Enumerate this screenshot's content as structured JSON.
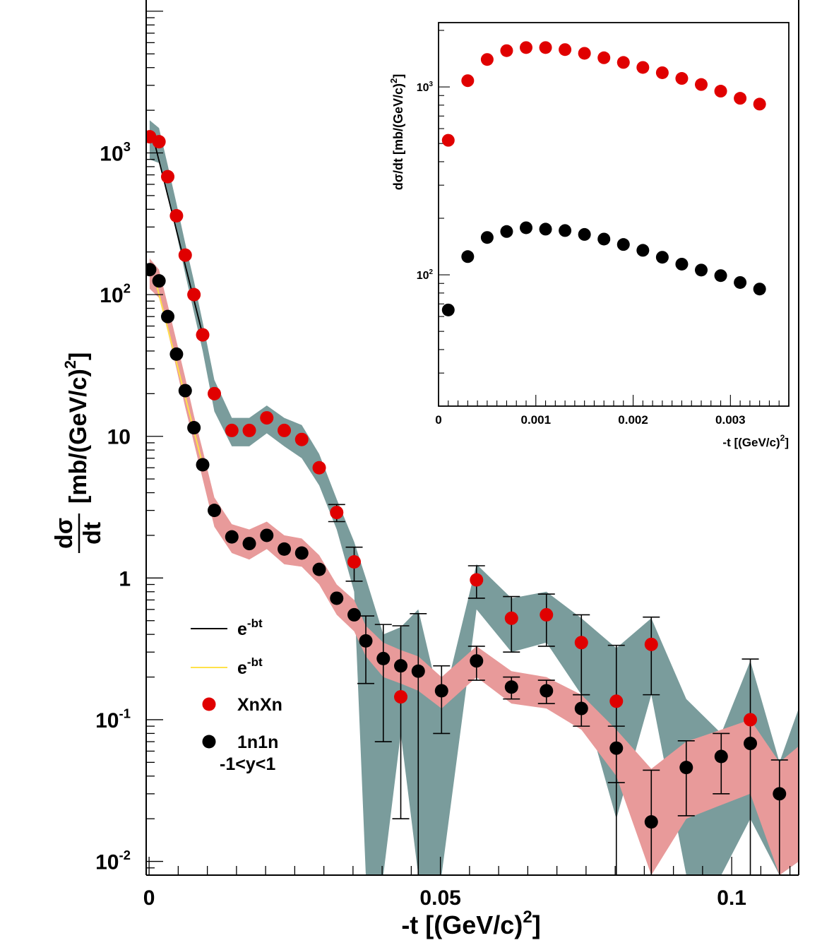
{
  "chart_data": [
    {
      "type": "scatter",
      "panel": "main",
      "xlabel_main": "-t [(GeV/c)",
      "xlabel_sup": "2",
      "xlabel_end": "]",
      "ylabel_frac_num": "dσ",
      "ylabel_frac_den": "dt",
      "ylabel_rest": "[mb/(GeV/c)",
      "ylabel_sup": "2",
      "ylabel_end": "]",
      "xlim": [
        -0.0005,
        0.1115
      ],
      "ylim": [
        0.008,
        12000
      ],
      "yscale": "log",
      "x_ticks": [
        {
          "value": 0,
          "label": "0"
        },
        {
          "value": 0.05,
          "label": "0.05"
        },
        {
          "value": 0.1,
          "label": "0.1"
        }
      ],
      "y_ticks": [
        {
          "value": 0.01,
          "base": "10",
          "exp": "-2"
        },
        {
          "value": 0.1,
          "base": "10",
          "exp": "-1"
        },
        {
          "value": 1,
          "base": "1",
          "exp": ""
        },
        {
          "value": 10,
          "base": "10",
          "exp": ""
        },
        {
          "value": 100,
          "base": "10",
          "exp": "2"
        },
        {
          "value": 1000,
          "base": "10",
          "exp": "3"
        }
      ],
      "legend": {
        "position": "bottom-left",
        "entries": [
          {
            "kind": "line",
            "color": "#000000",
            "label": "e",
            "sup": "-bt"
          },
          {
            "kind": "line",
            "color": "#ffe24a",
            "label": "e",
            "sup": "-bt"
          },
          {
            "kind": "marker",
            "color": "#e00000",
            "label": "XnXn",
            "sup": ""
          },
          {
            "kind": "marker",
            "color": "#000000",
            "label": "1n1n",
            "sup": ""
          }
        ],
        "note": "-1<y<1"
      },
      "series": [
        {
          "label": "XnXn",
          "marker_color": "#e00000",
          "band_color": "#7a9c9c",
          "points": [
            [
              0.0001,
              1300,
              null
            ],
            [
              0.0017,
              1200,
              null
            ],
            [
              0.0032,
              680,
              null
            ],
            [
              0.0047,
              360,
              null
            ],
            [
              0.0062,
              190,
              null
            ],
            [
              0.0077,
              100,
              null
            ],
            [
              0.0092,
              52,
              null
            ],
            [
              0.0112,
              20,
              null
            ],
            [
              0.0142,
              11,
              null
            ],
            [
              0.0172,
              11,
              null
            ],
            [
              0.0202,
              13.5,
              null
            ],
            [
              0.0232,
              11,
              null
            ],
            [
              0.0262,
              9.5,
              null
            ],
            [
              0.0292,
              6,
              null
            ],
            [
              0.0322,
              2.9,
              0.4
            ],
            [
              0.0352,
              1.3,
              0.35
            ],
            [
              0.0432,
              0.145,
              null
            ],
            [
              0.0562,
              0.97,
              0.25
            ],
            [
              0.0622,
              0.52,
              0.22
            ],
            [
              0.0682,
              0.55,
              0.22
            ],
            [
              0.0742,
              0.35,
              0.2
            ],
            [
              0.0802,
              0.135,
              0.2
            ],
            [
              0.0862,
              0.34,
              0.19
            ],
            [
              0.1032,
              0.1,
              null
            ]
          ],
          "band": [
            [
              0.0001,
              900,
              1700
            ],
            [
              0.0017,
              850,
              1500
            ],
            [
              0.0032,
              500,
              820
            ],
            [
              0.0047,
              270,
              440
            ],
            [
              0.0062,
              140,
              230
            ],
            [
              0.0077,
              75,
              125
            ],
            [
              0.0092,
              40,
              64
            ],
            [
              0.0112,
              15,
              25
            ],
            [
              0.0142,
              8.5,
              13.5
            ],
            [
              0.0172,
              8.5,
              13.5
            ],
            [
              0.0202,
              10.5,
              16.5
            ],
            [
              0.0232,
              8.5,
              13.5
            ],
            [
              0.0262,
              7,
              12
            ],
            [
              0.0292,
              4.5,
              7.5
            ],
            [
              0.0322,
              2.2,
              3.6
            ],
            [
              0.0352,
              0.8,
              1.8
            ],
            [
              0.0372,
              0.008,
              1.0
            ],
            [
              0.0402,
              0.008,
              0.4
            ],
            [
              0.0432,
              0.08,
              0.45
            ],
            [
              0.0462,
              0.008,
              0.6
            ],
            [
              0.0502,
              0.008,
              0.12
            ],
            [
              0.0562,
              0.6,
              1.25
            ],
            [
              0.0622,
              0.3,
              0.72
            ],
            [
              0.0682,
              0.35,
              0.8
            ],
            [
              0.0742,
              0.15,
              0.52
            ],
            [
              0.0802,
              0.02,
              0.32
            ],
            [
              0.0862,
              0.15,
              0.52
            ],
            [
              0.0922,
              0.008,
              0.14
            ],
            [
              0.0982,
              0.008,
              0.08
            ],
            [
              0.1032,
              0.02,
              0.26
            ],
            [
              0.1082,
              0.008,
              0.05
            ],
            [
              0.1115,
              0.01,
              0.12
            ]
          ]
        },
        {
          "label": "1n1n",
          "marker_color": "#000000",
          "band_color": "#e89a9a",
          "points": [
            [
              0.0001,
              150,
              null
            ],
            [
              0.0017,
              125,
              null
            ],
            [
              0.0032,
              70,
              null
            ],
            [
              0.0047,
              38,
              null
            ],
            [
              0.0062,
              21,
              null
            ],
            [
              0.0077,
              11.5,
              null
            ],
            [
              0.0092,
              6.3,
              null
            ],
            [
              0.0112,
              3.0,
              null
            ],
            [
              0.0142,
              1.95,
              null
            ],
            [
              0.0172,
              1.75,
              null
            ],
            [
              0.0202,
              2.0,
              null
            ],
            [
              0.0232,
              1.6,
              null
            ],
            [
              0.0262,
              1.5,
              null
            ],
            [
              0.0292,
              1.15,
              null
            ],
            [
              0.0322,
              0.72,
              null
            ],
            [
              0.0352,
              0.55,
              null
            ],
            [
              0.0372,
              0.36,
              0.18
            ],
            [
              0.0402,
              0.27,
              0.2
            ],
            [
              0.0432,
              0.24,
              0.22
            ],
            [
              0.0462,
              0.22,
              0.34
            ],
            [
              0.0502,
              0.16,
              0.08
            ],
            [
              0.0562,
              0.26,
              0.07
            ],
            [
              0.0622,
              0.17,
              0.03
            ],
            [
              0.0682,
              0.16,
              0.03
            ],
            [
              0.0742,
              0.12,
              0.03
            ],
            [
              0.0802,
              0.063,
              0.027
            ],
            [
              0.0862,
              0.019,
              0.025
            ],
            [
              0.0922,
              0.046,
              0.025
            ],
            [
              0.0982,
              0.055,
              0.025
            ],
            [
              0.1032,
              0.068,
              0.2
            ],
            [
              0.1082,
              0.03,
              0.022
            ]
          ],
          "band": [
            [
              0.0001,
              110,
              180
            ],
            [
              0.0017,
              95,
              150
            ],
            [
              0.0032,
              55,
              85
            ],
            [
              0.0047,
              30,
              47
            ],
            [
              0.0062,
              16,
              26
            ],
            [
              0.0077,
              9,
              14
            ],
            [
              0.0092,
              5,
              8
            ],
            [
              0.0112,
              2.3,
              3.7
            ],
            [
              0.0142,
              1.5,
              2.4
            ],
            [
              0.0172,
              1.35,
              2.2
            ],
            [
              0.0202,
              1.6,
              2.5
            ],
            [
              0.0232,
              1.25,
              2.0
            ],
            [
              0.0262,
              1.2,
              1.9
            ],
            [
              0.0292,
              0.9,
              1.45
            ],
            [
              0.0322,
              0.55,
              0.9
            ],
            [
              0.0352,
              0.42,
              0.7
            ],
            [
              0.0372,
              0.28,
              0.46
            ],
            [
              0.0402,
              0.2,
              0.35
            ],
            [
              0.0432,
              0.18,
              0.31
            ],
            [
              0.0462,
              0.16,
              0.28
            ],
            [
              0.0502,
              0.12,
              0.2
            ],
            [
              0.0562,
              0.2,
              0.33
            ],
            [
              0.0622,
              0.13,
              0.22
            ],
            [
              0.0682,
              0.12,
              0.2
            ],
            [
              0.0742,
              0.085,
              0.15
            ],
            [
              0.0802,
              0.04,
              0.085
            ],
            [
              0.0862,
              0.008,
              0.045
            ],
            [
              0.0922,
              0.02,
              0.07
            ],
            [
              0.0982,
              0.025,
              0.085
            ],
            [
              0.1032,
              0.03,
              0.1
            ],
            [
              0.1082,
              0.008,
              0.05
            ],
            [
              0.1115,
              0.01,
              0.065
            ]
          ]
        }
      ],
      "fits": [
        {
          "label": "e^-bt",
          "color": "#000000",
          "x0": 0.001,
          "x1": 0.0092,
          "y0": 1150,
          "y1": 52
        },
        {
          "label": "e^-bt",
          "color": "#ffe24a",
          "x0": 0.001,
          "x1": 0.0092,
          "y0": 130,
          "y1": 6.3
        }
      ]
    },
    {
      "type": "scatter",
      "panel": "inset",
      "xlabel_main": "-t [(GeV/c)",
      "xlabel_sup": "2",
      "xlabel_end": "]",
      "ylabel_main": "dσ/dt [mb/(GeV/c)",
      "ylabel_sup": "2",
      "ylabel_end": "]",
      "xlim": [
        0,
        0.0036
      ],
      "ylim": [
        20,
        2200
      ],
      "yscale": "log",
      "x_ticks": [
        {
          "value": 0,
          "label": "0"
        },
        {
          "value": 0.001,
          "label": "0.001"
        },
        {
          "value": 0.002,
          "label": "0.002"
        },
        {
          "value": 0.003,
          "label": "0.003"
        }
      ],
      "y_ticks": [
        {
          "value": 100,
          "base": "10",
          "exp": "2"
        },
        {
          "value": 1000,
          "base": "10",
          "exp": "3"
        }
      ],
      "series": [
        {
          "label": "XnXn",
          "color": "#e00000",
          "x": [
            0.0001,
            0.0003,
            0.0005,
            0.0007,
            0.0009,
            0.0011,
            0.0013,
            0.0015,
            0.0017,
            0.0019,
            0.0021,
            0.0023,
            0.0025,
            0.0027,
            0.0029,
            0.0031,
            0.0033
          ],
          "y": [
            520,
            1080,
            1400,
            1560,
            1620,
            1620,
            1580,
            1510,
            1430,
            1350,
            1270,
            1190,
            1110,
            1030,
            950,
            870,
            810
          ]
        },
        {
          "label": "1n1n",
          "color": "#000000",
          "x": [
            0.0001,
            0.0003,
            0.0005,
            0.0007,
            0.0009,
            0.0011,
            0.0013,
            0.0015,
            0.0017,
            0.0019,
            0.0021,
            0.0023,
            0.0025,
            0.0027,
            0.0029,
            0.0031,
            0.0033
          ],
          "y": [
            65,
            125,
            158,
            170,
            178,
            175,
            172,
            164,
            155,
            145,
            135,
            124,
            114,
            106,
            99,
            91,
            84
          ]
        }
      ]
    }
  ]
}
